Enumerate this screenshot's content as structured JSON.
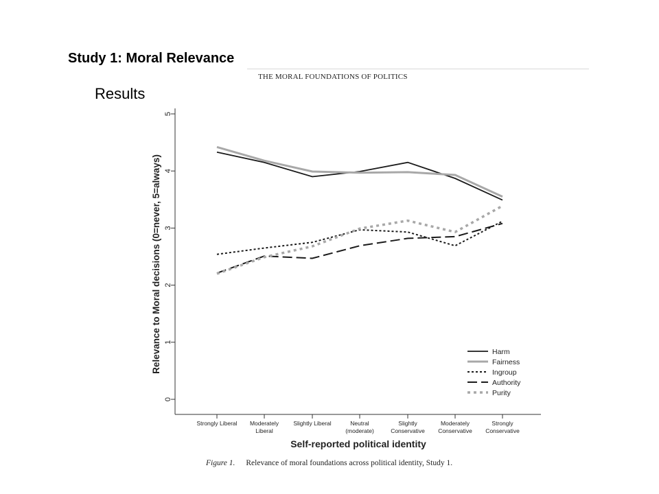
{
  "slide": {
    "title": "Study 1: Moral Relevance",
    "subtitle": "Results",
    "running_head": "THE MORAL FOUNDATIONS OF POLITICS",
    "caption_label": "Figure 1.",
    "caption_text": "Relevance of moral foundations across political identity, Study 1."
  },
  "chart_data": {
    "type": "line",
    "xlabel": "Self-reported political identity",
    "ylabel": "Relevance to Moral decisions (0=never, 5=always)",
    "ylim": [
      0,
      5
    ],
    "yticks": [
      0,
      1,
      2,
      3,
      4,
      5
    ],
    "categories": [
      [
        "Strongly Liberal"
      ],
      [
        "Moderately",
        "Liberal"
      ],
      [
        "Slightly Liberal"
      ],
      [
        "Neutral",
        "(moderate)"
      ],
      [
        "Slightly",
        "Conservative"
      ],
      [
        "Moderately",
        "Conservative"
      ],
      [
        "Strongly",
        "Conservative"
      ]
    ],
    "legend_position": "bottom-right",
    "grid": false,
    "series": [
      {
        "name": "Harm",
        "values": [
          4.33,
          4.15,
          3.9,
          3.99,
          4.15,
          3.87,
          3.49
        ],
        "color": "#1a1a1a",
        "style": "solid"
      },
      {
        "name": "Fairness",
        "values": [
          4.42,
          4.18,
          3.99,
          3.97,
          3.98,
          3.93,
          3.55
        ],
        "color": "#a8a8a8",
        "style": "solid"
      },
      {
        "name": "Ingroup",
        "values": [
          2.54,
          2.65,
          2.75,
          2.97,
          2.93,
          2.69,
          3.12
        ],
        "color": "#1a1a1a",
        "style": "dotted"
      },
      {
        "name": "Authority",
        "values": [
          2.21,
          2.51,
          2.47,
          2.69,
          2.82,
          2.85,
          3.08
        ],
        "color": "#1a1a1a",
        "style": "dashed"
      },
      {
        "name": "Purity",
        "values": [
          2.2,
          2.49,
          2.68,
          2.99,
          3.13,
          2.93,
          3.39
        ],
        "color": "#a8a8a8",
        "style": "dotted-heavy"
      }
    ]
  }
}
